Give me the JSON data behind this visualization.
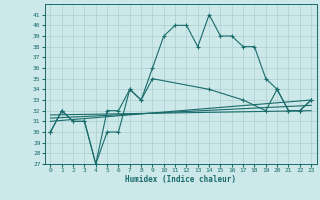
{
  "xlabel": "Humidex (Indice chaleur)",
  "bg_color": "#cce8e8",
  "line_color": "#1a6b6b",
  "grid_color": "#aacfcf",
  "xlim": [
    -0.5,
    23.5
  ],
  "ylim": [
    27,
    42
  ],
  "xticks": [
    0,
    1,
    2,
    3,
    4,
    5,
    6,
    7,
    8,
    9,
    10,
    11,
    12,
    13,
    14,
    15,
    16,
    17,
    18,
    19,
    20,
    21,
    22,
    23
  ],
  "yticks": [
    27,
    28,
    29,
    30,
    31,
    32,
    33,
    34,
    35,
    36,
    37,
    38,
    39,
    40,
    41
  ],
  "series1_x": [
    0,
    1,
    2,
    3,
    4,
    5,
    6,
    7,
    8,
    9,
    10,
    11,
    12,
    13,
    14,
    15,
    16,
    17,
    18,
    19,
    20,
    21,
    22,
    23
  ],
  "series1_y": [
    30,
    32,
    31,
    31,
    27,
    30,
    30,
    34,
    33,
    36,
    39,
    40,
    40,
    38,
    41,
    39,
    39,
    38,
    38,
    35,
    34,
    32,
    32,
    33
  ],
  "series2_x": [
    0,
    1,
    2,
    3,
    4,
    5,
    6,
    7,
    8,
    9,
    14,
    17,
    19,
    20,
    21,
    22,
    23
  ],
  "series2_y": [
    30,
    32,
    31,
    31,
    27,
    32,
    32,
    34,
    33,
    35,
    34,
    33,
    32,
    34,
    32,
    32,
    33
  ],
  "series3_x": [
    0,
    23
  ],
  "series3_y": [
    31,
    33
  ],
  "series4_x": [
    0,
    23
  ],
  "series4_y": [
    31.3,
    32.5
  ],
  "series5_x": [
    0,
    23
  ],
  "series5_y": [
    31.6,
    32.0
  ]
}
